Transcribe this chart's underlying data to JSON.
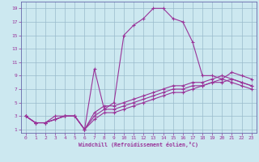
{
  "xlabel": "Windchill (Refroidissement éolien,°C)",
  "bg_color": "#cce8f0",
  "line_color": "#993399",
  "grid_color": "#99bbcc",
  "spine_color": "#6666aa",
  "xlim": [
    -0.5,
    23.5
  ],
  "ylim": [
    0.5,
    20
  ],
  "xticks": [
    0,
    1,
    2,
    3,
    4,
    5,
    6,
    7,
    8,
    9,
    10,
    11,
    12,
    13,
    14,
    15,
    16,
    17,
    18,
    19,
    20,
    21,
    22,
    23
  ],
  "yticks": [
    1,
    3,
    5,
    7,
    9,
    11,
    13,
    15,
    17,
    19
  ],
  "line1_x": [
    0,
    1,
    2,
    3,
    4,
    5,
    6,
    7,
    8,
    9,
    10,
    11,
    12,
    13,
    14,
    15,
    16,
    17,
    18,
    19,
    20,
    21,
    22,
    23
  ],
  "line1_y": [
    3,
    2,
    2,
    3,
    3,
    3,
    1,
    10,
    4,
    5,
    15,
    16.5,
    17.5,
    19,
    19,
    17.5,
    17,
    14,
    9,
    9,
    8.5,
    9.5,
    9,
    8.5
  ],
  "line2_x": [
    0,
    1,
    2,
    3,
    4,
    5,
    6,
    7,
    8,
    9,
    10,
    11,
    12,
    13,
    14,
    15,
    16,
    17,
    18,
    19,
    20,
    21,
    22,
    23
  ],
  "line2_y": [
    3,
    2,
    2,
    2.5,
    3,
    3,
    1,
    3.5,
    4.5,
    4.5,
    5,
    5.5,
    6,
    6.5,
    7,
    7.5,
    7.5,
    8,
    8,
    8.5,
    9,
    8.5,
    8,
    7.5
  ],
  "line3_x": [
    0,
    1,
    2,
    3,
    4,
    5,
    6,
    7,
    8,
    9,
    10,
    11,
    12,
    13,
    14,
    15,
    16,
    17,
    18,
    19,
    20,
    21,
    22,
    23
  ],
  "line3_y": [
    3,
    2,
    2,
    2.5,
    3,
    3,
    1,
    3,
    4,
    4,
    4.5,
    5,
    5.5,
    6,
    6.5,
    7,
    7,
    7.5,
    7.5,
    8,
    8.5,
    8,
    7.5,
    7
  ],
  "line4_x": [
    0,
    1,
    2,
    3,
    4,
    5,
    6,
    7,
    8,
    9,
    10,
    11,
    12,
    13,
    14,
    15,
    16,
    17,
    18,
    19,
    20,
    21,
    22,
    23
  ],
  "line4_y": [
    3,
    2,
    2,
    2.5,
    3,
    3,
    1,
    2.5,
    3.5,
    3.5,
    4,
    4.5,
    5,
    5.5,
    6,
    6.5,
    6.5,
    7,
    7.5,
    8,
    8,
    8.5,
    8,
    7.5
  ]
}
